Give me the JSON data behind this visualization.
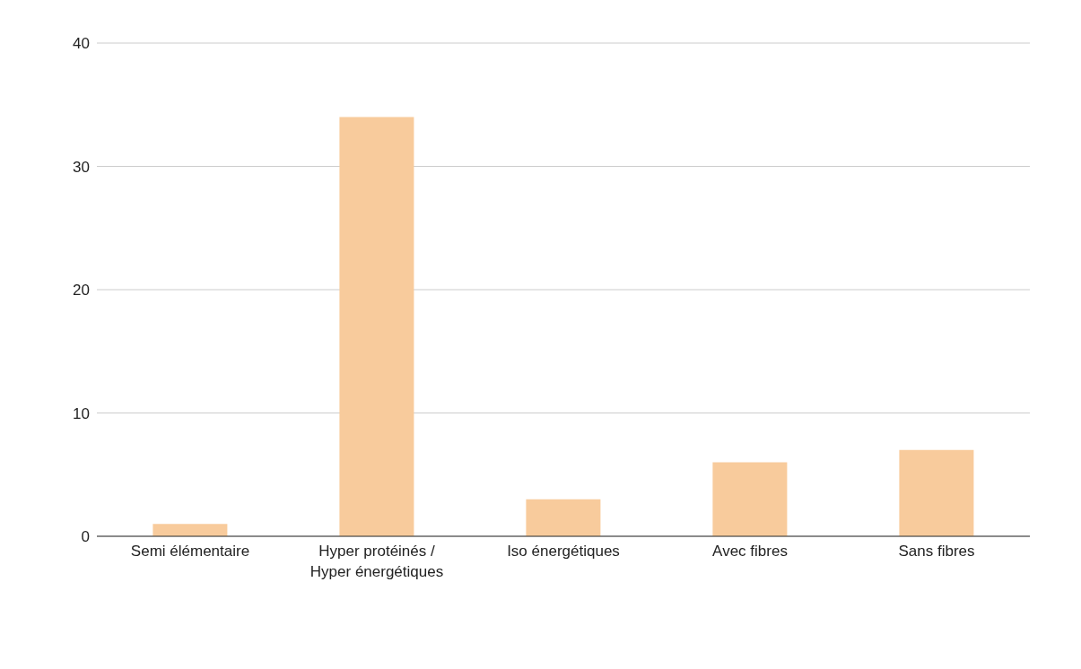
{
  "chart_data": {
    "type": "bar",
    "categories": [
      "Semi élémentaire",
      "Hyper protéinés / Hyper énergétiques",
      "Iso énergétiques",
      "Avec fibres",
      "Sans fibres"
    ],
    "values": [
      1,
      34,
      3,
      6,
      7
    ],
    "color": "#f8cb9c",
    "ylim": [
      0,
      40
    ],
    "yticks": [
      0,
      10,
      20,
      30,
      40
    ],
    "grid": "y"
  }
}
